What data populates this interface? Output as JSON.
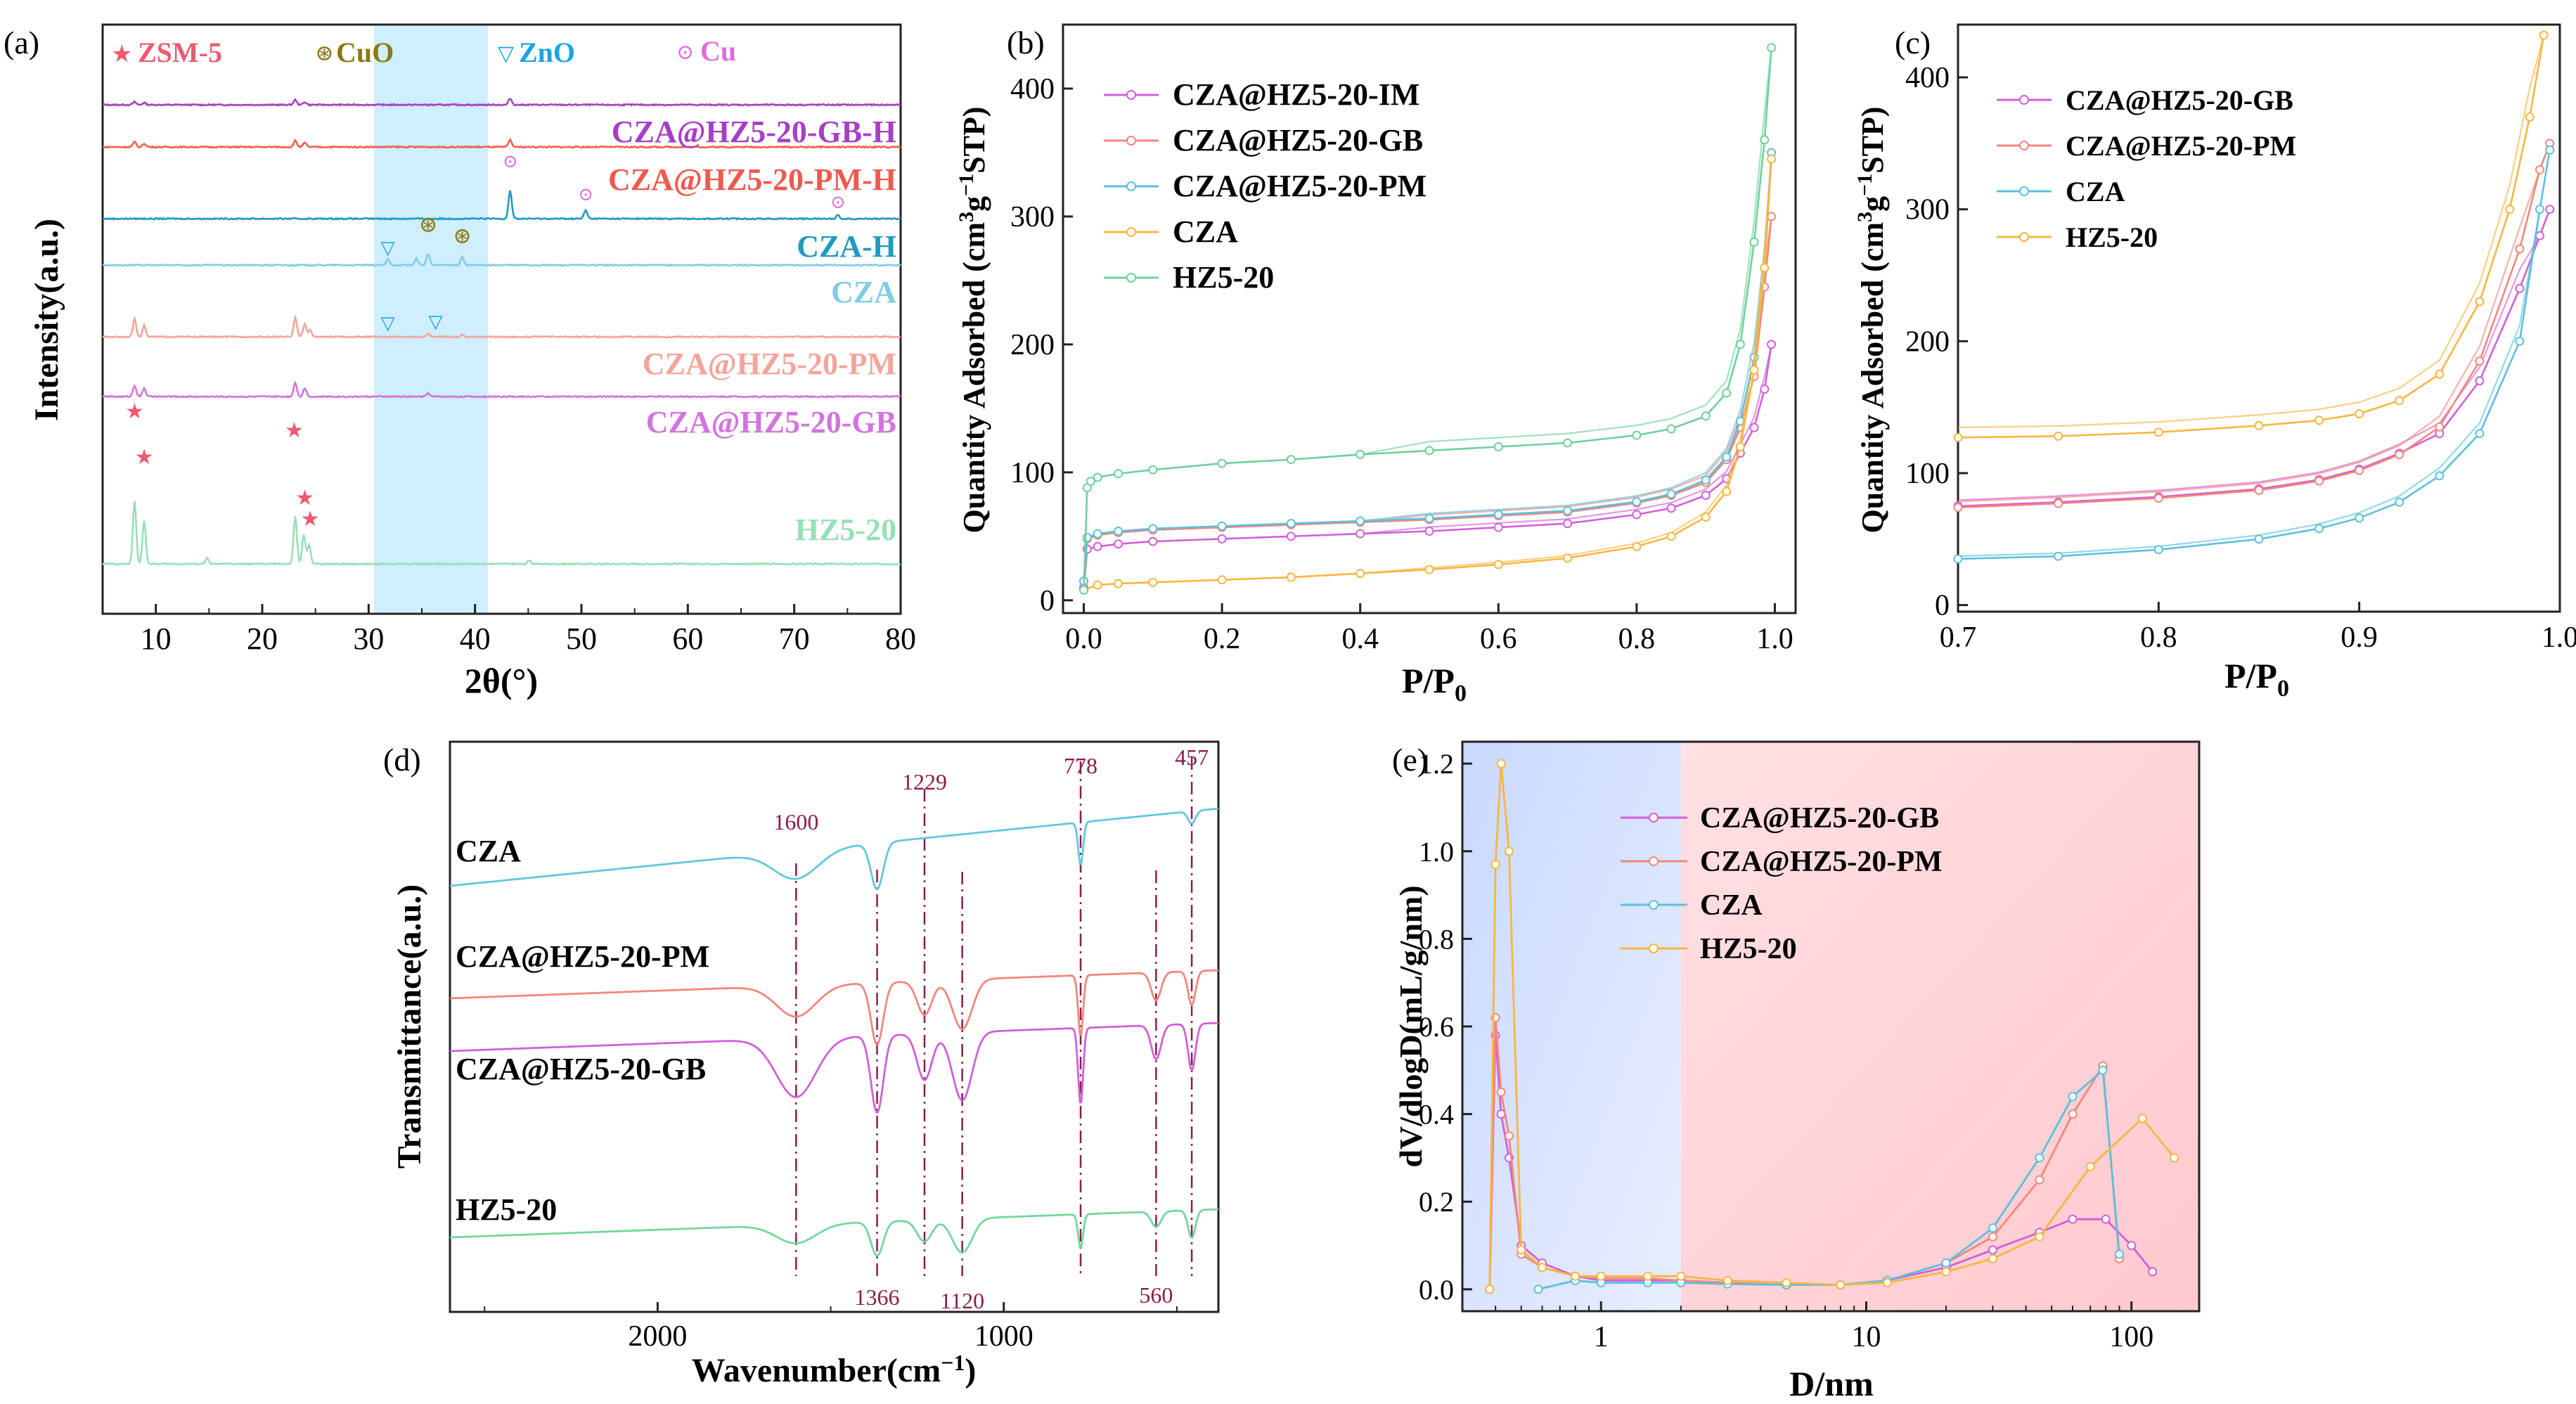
{
  "colors": {
    "pink": "#e8a0e6",
    "purple": "#a63fc4",
    "salmon": "#f2877c",
    "blue": "#29a7c7",
    "teal": "#58bfd6",
    "orange": "#f8b640",
    "green": "#6fd19a",
    "red": "#ee5a6f",
    "shade": "#ccebff",
    "dark_red": "#8b1d4b"
  },
  "chart_data": [
    {
      "panel": "(a)",
      "type": "line",
      "title": "",
      "xlabel": "2θ(°)",
      "ylabel": "Intensity(a.u.)",
      "xlim": [
        5,
        80
      ],
      "xticks": [
        10,
        20,
        30,
        40,
        50,
        60,
        70,
        80
      ],
      "shaded_range": [
        30.5,
        41.2
      ],
      "legend": [
        {
          "marker": "★",
          "label": "ZSM-5"
        },
        {
          "marker": "⊛",
          "label": "CuO"
        },
        {
          "marker": "▽",
          "label": "ZnO"
        },
        {
          "marker": "⊙",
          "label": "Cu"
        }
      ],
      "series": [
        {
          "name": "CZA@HZ5-20-GB-H",
          "peaks": [
            [
              8,
              4
            ],
            [
              8.9,
              3
            ],
            [
              23.1,
              7
            ],
            [
              24,
              4
            ],
            [
              43.3,
              9
            ]
          ]
        },
        {
          "name": "CZA@HZ5-20-PM-H",
          "peaks": [
            [
              8,
              7
            ],
            [
              8.9,
              5
            ],
            [
              23.1,
              9
            ],
            [
              24,
              6
            ],
            [
              43.3,
              10
            ]
          ]
        },
        {
          "name": "CZA-H",
          "peaks": [
            [
              43.3,
              40
            ],
            [
              50.4,
              12
            ],
            [
              74.1,
              5
            ]
          ]
        },
        {
          "name": "CZA",
          "peaks": [
            [
              31.8,
              8
            ],
            [
              34.5,
              9
            ],
            [
              35.6,
              16
            ],
            [
              38.8,
              12
            ]
          ]
        },
        {
          "name": "CZA@HZ5-20-PM",
          "peaks": [
            [
              8,
              25
            ],
            [
              8.9,
              16
            ],
            [
              23.1,
              28
            ],
            [
              24,
              18
            ],
            [
              24.5,
              10
            ],
            [
              35.6,
              5
            ],
            [
              38.8,
              3
            ]
          ]
        },
        {
          "name": "CZA@HZ5-20-GB",
          "peaks": [
            [
              8,
              16
            ],
            [
              8.9,
              12
            ],
            [
              23.1,
              20
            ],
            [
              24,
              12
            ],
            [
              35.6,
              5
            ]
          ]
        },
        {
          "name": "HZ5-20",
          "peaks": [
            [
              8,
              90
            ],
            [
              8.9,
              62
            ],
            [
              14.8,
              8
            ],
            [
              23.1,
              68
            ],
            [
              23.9,
              42
            ],
            [
              24.4,
              28
            ],
            [
              45.1,
              5
            ]
          ]
        }
      ]
    },
    {
      "panel": "(b)",
      "type": "line",
      "xlabel": "P/P0",
      "ylabel": "Quantity Adsorbed (cm3g−1STP)",
      "xlim": [
        -0.03,
        1.03
      ],
      "ylim": [
        -10,
        450
      ],
      "xticks": [
        0.0,
        0.2,
        0.4,
        0.6,
        0.8,
        1.0
      ],
      "yticks": [
        0,
        100,
        200,
        300,
        400
      ],
      "series": [
        {
          "name": "CZA@HZ5-20-IM",
          "x": [
            0.0,
            0.005,
            0.02,
            0.05,
            0.1,
            0.2,
            0.3,
            0.4,
            0.5,
            0.6,
            0.7,
            0.8,
            0.85,
            0.9,
            0.93,
            0.95,
            0.97,
            0.985,
            0.995
          ],
          "y": [
            10,
            40,
            42,
            44,
            46,
            48,
            50,
            52,
            54,
            57,
            60,
            67,
            72,
            82,
            95,
            115,
            135,
            165,
            200
          ]
        },
        {
          "name": "CZA@HZ5-20-GB",
          "x": [
            0.0,
            0.005,
            0.02,
            0.05,
            0.1,
            0.2,
            0.3,
            0.4,
            0.5,
            0.6,
            0.7,
            0.8,
            0.85,
            0.9,
            0.93,
            0.95,
            0.97,
            0.985,
            0.995
          ],
          "y": [
            15,
            48,
            51,
            53,
            55,
            57,
            59,
            61,
            63,
            66,
            69,
            76,
            82,
            92,
            110,
            135,
            175,
            245,
            300
          ]
        },
        {
          "name": "CZA@HZ5-20-PM",
          "x": [
            0.0,
            0.005,
            0.02,
            0.05,
            0.1,
            0.2,
            0.3,
            0.4,
            0.5,
            0.6,
            0.7,
            0.8,
            0.85,
            0.9,
            0.93,
            0.95,
            0.97,
            0.985,
            0.995
          ],
          "y": [
            15,
            49,
            52,
            54,
            56,
            58,
            60,
            62,
            64,
            67,
            70,
            77,
            83,
            94,
            112,
            140,
            190,
            260,
            350
          ]
        },
        {
          "name": "CZA",
          "x": [
            0.0,
            0.02,
            0.05,
            0.1,
            0.2,
            0.3,
            0.4,
            0.5,
            0.6,
            0.7,
            0.8,
            0.85,
            0.9,
            0.93,
            0.95,
            0.97,
            0.985,
            0.995
          ],
          "y": [
            8,
            12,
            13,
            14,
            16,
            18,
            21,
            24,
            28,
            33,
            42,
            50,
            65,
            85,
            120,
            180,
            260,
            345
          ]
        },
        {
          "name": "HZ5-20",
          "x": [
            0.0,
            0.005,
            0.01,
            0.02,
            0.05,
            0.1,
            0.2,
            0.3,
            0.4,
            0.5,
            0.6,
            0.7,
            0.8,
            0.85,
            0.9,
            0.93,
            0.95,
            0.97,
            0.985,
            0.995
          ],
          "y": [
            8,
            88,
            93,
            96,
            99,
            102,
            107,
            110,
            114,
            117,
            120,
            123,
            129,
            134,
            144,
            162,
            200,
            280,
            360,
            432
          ]
        }
      ]
    },
    {
      "panel": "(c)",
      "type": "line",
      "xlabel": "P/P0",
      "ylabel": "Quantity Adsorbed (cm3g−1STP)",
      "xlim": [
        0.7,
        1.0
      ],
      "ylim": [
        -5,
        440
      ],
      "xticks": [
        0.7,
        0.8,
        0.9,
        1.0
      ],
      "yticks": [
        0,
        100,
        200,
        300,
        400
      ],
      "series": [
        {
          "name": "CZA@HZ5-20-GB",
          "x": [
            0.7,
            0.75,
            0.8,
            0.85,
            0.88,
            0.9,
            0.92,
            0.94,
            0.96,
            0.98,
            0.99,
            0.995
          ],
          "y": [
            75,
            78,
            82,
            88,
            95,
            103,
            115,
            130,
            170,
            240,
            280,
            300
          ]
        },
        {
          "name": "CZA@HZ5-20-PM",
          "x": [
            0.7,
            0.75,
            0.8,
            0.85,
            0.88,
            0.9,
            0.92,
            0.94,
            0.96,
            0.98,
            0.99,
            0.995
          ],
          "y": [
            74,
            77,
            81,
            87,
            94,
            102,
            114,
            135,
            185,
            270,
            330,
            350
          ]
        },
        {
          "name": "CZA",
          "x": [
            0.7,
            0.75,
            0.8,
            0.85,
            0.88,
            0.9,
            0.92,
            0.94,
            0.96,
            0.98,
            0.99,
            0.995
          ],
          "y": [
            35,
            37,
            42,
            50,
            58,
            66,
            78,
            98,
            130,
            200,
            300,
            345
          ]
        },
        {
          "name": "HZ5-20",
          "x": [
            0.7,
            0.75,
            0.8,
            0.85,
            0.88,
            0.9,
            0.92,
            0.94,
            0.96,
            0.975,
            0.985,
            0.992
          ],
          "y": [
            127,
            128,
            131,
            136,
            140,
            145,
            155,
            175,
            230,
            300,
            370,
            432
          ]
        }
      ]
    },
    {
      "panel": "(d)",
      "type": "line",
      "xlabel": "Wavenumber(cm−1)",
      "ylabel": "Transmittance(a.u.)",
      "xlim": [
        2600,
        380
      ],
      "xticks": [
        2000,
        1000
      ],
      "peak_lines": [
        1600,
        1366,
        1229,
        1120,
        778,
        560,
        457
      ],
      "series": [
        {
          "name": "CZA",
          "bands": [
            [
              1600,
              18,
              90
            ],
            [
              1366,
              30,
              25
            ],
            [
              778,
              28,
              10
            ],
            [
              457,
              8,
              15
            ]
          ]
        },
        {
          "name": "CZA@HZ5-20-PM",
          "bands": [
            [
              1600,
              20,
              80
            ],
            [
              1366,
              40,
              25
            ],
            [
              1229,
              22,
              30
            ],
            [
              1120,
              32,
              40
            ],
            [
              778,
              40,
              10
            ],
            [
              560,
              18,
              20
            ],
            [
              457,
              22,
              15
            ]
          ]
        },
        {
          "name": "CZA@HZ5-20-GB",
          "bands": [
            [
              1600,
              38,
              80
            ],
            [
              1366,
              50,
              25
            ],
            [
              1229,
              30,
              30
            ],
            [
              1120,
              44,
              40
            ],
            [
              778,
              50,
              10
            ],
            [
              560,
              22,
              20
            ],
            [
              457,
              30,
              15
            ]
          ]
        },
        {
          "name": "HZ5-20",
          "bands": [
            [
              1600,
              12,
              80
            ],
            [
              1366,
              22,
              25
            ],
            [
              1229,
              14,
              30
            ],
            [
              1120,
              22,
              40
            ],
            [
              778,
              22,
              10
            ],
            [
              560,
              10,
              20
            ],
            [
              457,
              18,
              15
            ]
          ]
        }
      ]
    },
    {
      "panel": "(e)",
      "type": "line",
      "xscale": "log",
      "xlabel": "D/nm",
      "ylabel": "dV/dlogD(mL/g/nm)",
      "xlim": [
        0.3,
        180
      ],
      "ylim": [
        -0.05,
        1.25
      ],
      "xticks": [
        1,
        10,
        100
      ],
      "yticks": [
        0.0,
        0.2,
        0.4,
        0.6,
        0.8,
        1.0,
        1.2
      ],
      "shaded_split": 2,
      "series": [
        {
          "name": "CZA@HZ5-20-GB",
          "x": [
            0.38,
            0.4,
            0.42,
            0.45,
            0.5,
            0.6,
            0.8,
            1,
            1.5,
            2,
            3,
            5,
            8,
            12,
            20,
            30,
            45,
            60,
            80,
            100,
            120
          ],
          "y": [
            0.0,
            0.58,
            0.4,
            0.3,
            0.1,
            0.06,
            0.03,
            0.02,
            0.02,
            0.02,
            0.015,
            0.01,
            0.01,
            0.02,
            0.05,
            0.09,
            0.13,
            0.16,
            0.16,
            0.1,
            0.04
          ]
        },
        {
          "name": "CZA@HZ5-20-PM",
          "x": [
            0.38,
            0.4,
            0.42,
            0.45,
            0.5,
            0.6,
            0.8,
            1,
            1.5,
            2,
            3,
            5,
            8,
            12,
            20,
            30,
            45,
            60,
            78,
            90
          ],
          "y": [
            0.0,
            0.62,
            0.45,
            0.35,
            0.08,
            0.05,
            0.03,
            0.025,
            0.025,
            0.02,
            0.015,
            0.01,
            0.01,
            0.02,
            0.06,
            0.12,
            0.25,
            0.4,
            0.51,
            0.07
          ]
        },
        {
          "name": "CZA",
          "x": [
            0.58,
            0.8,
            1,
            1.5,
            2,
            3,
            5,
            8,
            12,
            20,
            30,
            45,
            60,
            78,
            90
          ],
          "y": [
            0.0,
            0.02,
            0.015,
            0.015,
            0.015,
            0.012,
            0.01,
            0.01,
            0.02,
            0.06,
            0.14,
            0.3,
            0.44,
            0.5,
            0.08
          ]
        },
        {
          "name": "HZ5-20",
          "x": [
            0.38,
            0.4,
            0.42,
            0.45,
            0.5,
            0.6,
            0.8,
            1,
            1.5,
            2,
            3,
            5,
            8,
            12,
            20,
            30,
            45,
            70,
            110,
            145
          ],
          "y": [
            0.0,
            0.97,
            1.2,
            1.0,
            0.09,
            0.05,
            0.03,
            0.03,
            0.03,
            0.03,
            0.02,
            0.015,
            0.01,
            0.015,
            0.04,
            0.07,
            0.12,
            0.28,
            0.39,
            0.3
          ]
        }
      ]
    }
  ],
  "panel_labels": {
    "a": "(a)",
    "b": "(b)",
    "c": "(c)",
    "d": "(d)",
    "e": "(e)"
  },
  "panel_a": {
    "legend_zsm5": "ZSM-5",
    "legend_cuo": "CuO",
    "legend_zno": "ZnO",
    "legend_cu": "Cu",
    "label_gb_h": "CZA@HZ5-20-GB-H",
    "label_pm_h": "CZA@HZ5-20-PM-H",
    "label_cza_h": "CZA-H",
    "label_cza": "CZA",
    "label_pm": "CZA@HZ5-20-PM",
    "label_gb": "CZA@HZ5-20-GB",
    "label_hz": "HZ5-20"
  },
  "panel_b": {
    "legend": [
      "CZA@HZ5-20-IM",
      "CZA@HZ5-20-GB",
      "CZA@HZ5-20-PM",
      "CZA",
      "HZ5-20"
    ]
  },
  "panel_c": {
    "legend": [
      "CZA@HZ5-20-GB",
      "CZA@HZ5-20-PM",
      "CZA",
      "HZ5-20"
    ]
  },
  "panel_d": {
    "labels": [
      "CZA",
      "CZA@HZ5-20-PM",
      "CZA@HZ5-20-GB",
      "HZ5-20"
    ],
    "peak_labels": [
      "1600",
      "1366",
      "1229",
      "1120",
      "778",
      "560",
      "457"
    ]
  },
  "panel_e": {
    "legend": [
      "CZA@HZ5-20-GB",
      "CZA@HZ5-20-PM",
      "CZA",
      "HZ5-20"
    ]
  }
}
